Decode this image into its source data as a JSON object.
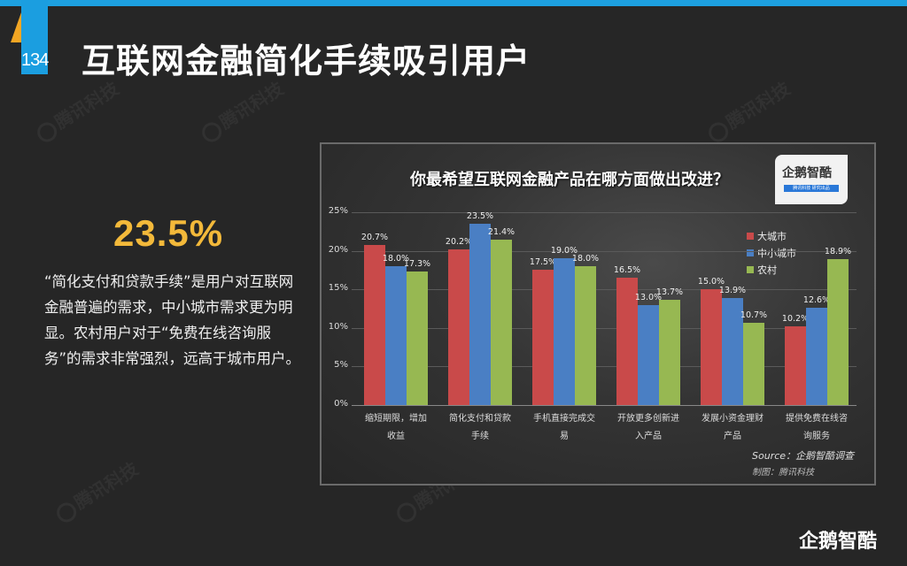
{
  "header": {
    "page_number": "134",
    "title": "互联网金融简化手续吸引用户",
    "accent_color": "#1da0e0",
    "triangle_color": "#f3a623"
  },
  "highlight": {
    "stat": "23.5%",
    "stat_color": "#f3b93a",
    "description": "“简化支付和贷款手续”是用户对互联网金融普遍的需求，中小城市需求更为明显。农村用户对于“免费在线咨询服务”的需求非常强烈，远高于城市用户。"
  },
  "watermark": {
    "text": "腾讯科技"
  },
  "chart_logo": {
    "name": "企鹅智酷",
    "tagline": "腾讯科技 研究出品"
  },
  "footer_logo": {
    "text": "企鹅智酷"
  },
  "chart_data": {
    "type": "bar",
    "title": "你最希望互联网金融产品在哪方面做出改进？",
    "xlabel": "",
    "ylabel": "",
    "ylim": [
      0,
      25
    ],
    "y_ticks": [
      "0%",
      "5%",
      "10%",
      "15%",
      "20%",
      "25%"
    ],
    "grid": true,
    "legend_position": "top-right",
    "categories": [
      [
        "缩短期限，增加",
        "收益"
      ],
      [
        "简化支付和贷款",
        "手续"
      ],
      [
        "手机直接完成交",
        "易"
      ],
      [
        "开放更多创新进",
        "入产品"
      ],
      [
        "发展小资金理财",
        "产品"
      ],
      [
        "提供免费在线咨",
        "询服务"
      ]
    ],
    "series": [
      {
        "name": "大城市",
        "color": "#c94a4a",
        "values": [
          20.7,
          20.2,
          17.5,
          16.5,
          15.0,
          10.2
        ],
        "labels": [
          "20.7%",
          "20.2%",
          "17.5%",
          "16.5%",
          "15.0%",
          "10.2%"
        ]
      },
      {
        "name": "中小城市",
        "color": "#4a7fc4",
        "values": [
          18.0,
          23.5,
          19.0,
          13.0,
          13.9,
          12.6
        ],
        "labels": [
          "18.0%",
          "23.5%",
          "19.0%",
          "13.0%",
          "13.9%",
          "12.6%"
        ]
      },
      {
        "name": "农村",
        "color": "#97b852",
        "values": [
          17.3,
          21.4,
          18.0,
          13.7,
          10.7,
          18.9
        ],
        "labels": [
          "17.3%",
          "21.4%",
          "18.0%",
          "13.7%",
          "10.7%",
          "18.9%"
        ]
      }
    ],
    "source": "Source：企鹅智酷调查",
    "made_by": "制图：腾讯科技"
  }
}
